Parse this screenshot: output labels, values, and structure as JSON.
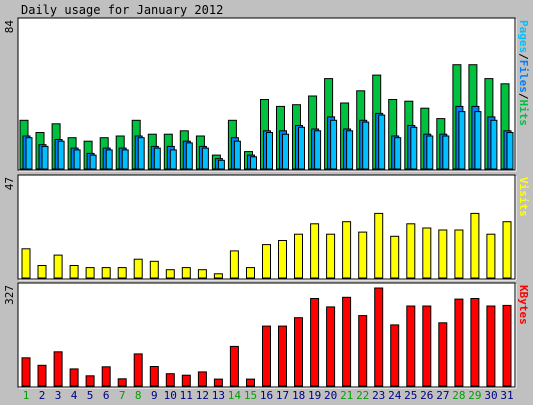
{
  "title": "Daily usage for January 2012",
  "colors": {
    "background": "#c0c0c0",
    "panel": "#ffffff",
    "hits": "#00c040",
    "files": "#0080ff",
    "pages": "#00c0ff",
    "visits": "#ffff00",
    "kbytes": "#ff0000",
    "weekend_label": "#00a000",
    "weekday_label": "#000080"
  },
  "chart_data": [
    {
      "type": "bar",
      "panel": "hits",
      "ymax_label": "84",
      "ymax": 84,
      "legend": [
        {
          "text": "Pages",
          "color": "#00c0ff"
        },
        {
          "text": "/",
          "color": "#000000"
        },
        {
          "text": "Files",
          "color": "#0080ff"
        },
        {
          "text": "/",
          "color": "#000000"
        },
        {
          "text": "Hits",
          "color": "#00c040"
        }
      ],
      "categories": [
        "1",
        "2",
        "3",
        "4",
        "5",
        "6",
        "7",
        "8",
        "9",
        "10",
        "11",
        "12",
        "13",
        "14",
        "15",
        "16",
        "17",
        "18",
        "19",
        "20",
        "21",
        "22",
        "23",
        "24",
        "25",
        "26",
        "27",
        "28",
        "29",
        "30",
        "31"
      ],
      "weekend_days": [
        "1",
        "7",
        "8",
        "14",
        "15",
        "21",
        "22",
        "28",
        "29"
      ],
      "series": [
        {
          "key": "hits",
          "values": [
            28,
            21,
            26,
            18,
            16,
            18,
            19,
            28,
            20,
            20,
            22,
            19,
            8,
            28,
            10,
            40,
            36,
            37,
            42,
            52,
            38,
            45,
            54,
            40,
            39,
            35,
            29,
            60,
            60,
            52,
            49
          ]
        },
        {
          "key": "files",
          "values": [
            19,
            14,
            17,
            12,
            9,
            12,
            12,
            19,
            13,
            13,
            16,
            13,
            6,
            18,
            8,
            22,
            22,
            25,
            23,
            30,
            23,
            28,
            32,
            19,
            25,
            20,
            20,
            36,
            36,
            30,
            22
          ]
        },
        {
          "key": "pages",
          "values": [
            18,
            13,
            16,
            11,
            8,
            11,
            11,
            18,
            12,
            11,
            15,
            12,
            5,
            16,
            7,
            21,
            20,
            24,
            22,
            28,
            22,
            27,
            31,
            18,
            24,
            19,
            19,
            33,
            33,
            28,
            21
          ]
        }
      ]
    },
    {
      "type": "bar",
      "panel": "visits",
      "ymax_label": "47",
      "ymax": 47,
      "legend": [
        {
          "text": "Visits",
          "color": "#ffff00"
        }
      ],
      "series": [
        {
          "key": "visits",
          "values": [
            14,
            6,
            11,
            6,
            5,
            5,
            5,
            9,
            8,
            4,
            5,
            4,
            2,
            13,
            5,
            16,
            18,
            21,
            26,
            21,
            27,
            22,
            31,
            20,
            26,
            24,
            23,
            23,
            31,
            21,
            27
          ]
        }
      ]
    },
    {
      "type": "bar",
      "panel": "kbytes",
      "ymax_label": "327",
      "ymax": 327,
      "legend": [
        {
          "text": "KBytes",
          "color": "#ff0000"
        }
      ],
      "series": [
        {
          "key": "kbytes",
          "values": [
            94,
            69,
            114,
            57,
            34,
            64,
            24,
            107,
            65,
            41,
            36,
            47,
            23,
            132,
            23,
            200,
            200,
            228,
            292,
            264,
            296,
            235,
            327,
            204,
            267,
            267,
            211,
            290,
            292,
            267,
            269
          ]
        }
      ]
    }
  ]
}
